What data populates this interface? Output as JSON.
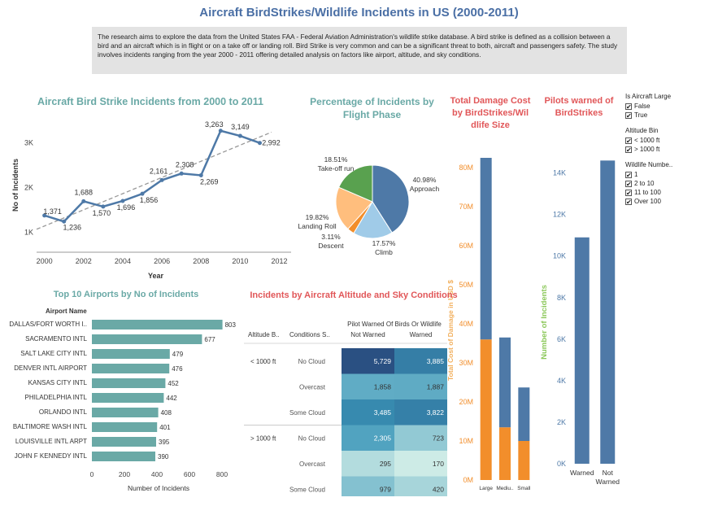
{
  "title": "Aircraft BirdStrikes/Wildlife Incidents in US (2000-2011)",
  "description": "The research aims to explore the data from the United States FAA - Federal Aviation Administration's wildlife strike database. A bird strike is defined as a collision between a bird and an aircraft which is in flight or on a take off or landing roll. Bird Strike is very common and can be a significant threat to both, aircraft and passengers safety. The study involves incidents ranging from the year 2000 - 2011 offering detailed analysis on factors like airport, altitude, and sky conditions.",
  "chart_data": [
    {
      "type": "line",
      "title": "Aircraft Bird Strike Incidents from 2000 to 2011",
      "xlabel": "Year",
      "ylabel": "No of Incidents",
      "x": [
        2000,
        2001,
        2002,
        2003,
        2004,
        2005,
        2006,
        2007,
        2008,
        2009,
        2010,
        2011
      ],
      "values": [
        1371,
        1236,
        1688,
        1570,
        1696,
        1856,
        2161,
        2308,
        2269,
        3263,
        3149,
        2992
      ],
      "data_labels": [
        "1,371",
        "1,236",
        "1,688",
        "1,570",
        "1,696",
        "1,856",
        "2,161",
        "2,308",
        "2,269",
        "3,263",
        "3,149",
        "2,992"
      ],
      "xticks": [
        "2000",
        "2002",
        "2004",
        "2006",
        "2008",
        "2010",
        "2012"
      ],
      "yticks": [
        {
          "v": 1000,
          "label": "1K"
        },
        {
          "v": 2000,
          "label": "2K"
        },
        {
          "v": 3000,
          "label": "3K"
        }
      ],
      "xlim": [
        1999.6,
        2012.6
      ],
      "ylim": [
        550,
        3550
      ],
      "trend_line": true,
      "color": "#4e79a7"
    },
    {
      "type": "pie",
      "title": "Percentage of Incidents by Flight Phase",
      "slices": [
        {
          "name": "Approach",
          "value": 40.98,
          "label": "40.98%",
          "color": "#4e79a7"
        },
        {
          "name": "Climb",
          "value": 17.57,
          "label": "17.57%",
          "color": "#a0cbe8"
        },
        {
          "name": "Descent",
          "value": 3.11,
          "label": "3.11%",
          "color": "#f28e2b"
        },
        {
          "name": "Landing Roll",
          "value": 19.82,
          "label": "19.82%",
          "color": "#ffbe7d"
        },
        {
          "name": "Take-off run",
          "value": 18.51,
          "label": "18.51%",
          "color": "#59a14f"
        }
      ]
    },
    {
      "type": "bar",
      "title": "Total Damage Cost by BirdStrikes/Wildlife Size",
      "title_lines": [
        "Total Damage Cost",
        "by BirdStrikes/Wil",
        "dlife Size"
      ],
      "ylabel": "Total Cost of Damage in USD $",
      "categories": [
        "Large",
        "Medium",
        "Small"
      ],
      "category_labels": [
        "Large",
        "Mediu..",
        "Small"
      ],
      "series": [
        {
          "values": [
            36000000,
            13500000,
            10000000
          ],
          "color": "#f28e2b"
        },
        {
          "values": [
            46500000,
            23000000,
            13700000
          ],
          "color": "#4e79a7"
        }
      ],
      "yticks": [
        {
          "v": 0,
          "label": "0M"
        },
        {
          "v": 10000000,
          "label": "10M"
        },
        {
          "v": 20000000,
          "label": "20M"
        },
        {
          "v": 30000000,
          "label": "30M"
        },
        {
          "v": 40000000,
          "label": "40M"
        },
        {
          "v": 50000000,
          "label": "50M"
        },
        {
          "v": 60000000,
          "label": "60M"
        },
        {
          "v": 70000000,
          "label": "70M"
        },
        {
          "v": 80000000,
          "label": "80M"
        }
      ],
      "ylim": [
        0,
        85000000
      ]
    },
    {
      "type": "bar",
      "title": "Pilots warned of BirdStrikes",
      "title_lines": [
        "Pilots warned of",
        "BirdStrikes"
      ],
      "ylabel": "Number of Incidents",
      "categories": [
        "Warned",
        "Not Warned"
      ],
      "category_labels": [
        [
          "Warned"
        ],
        [
          "Not",
          "Warned"
        ]
      ],
      "values": [
        10900,
        14600
      ],
      "color": "#4e79a7",
      "yticks": [
        {
          "v": 0,
          "label": "0K"
        },
        {
          "v": 2000,
          "label": "2K"
        },
        {
          "v": 4000,
          "label": "4K"
        },
        {
          "v": 6000,
          "label": "6K"
        },
        {
          "v": 8000,
          "label": "8K"
        },
        {
          "v": 10000,
          "label": "10K"
        },
        {
          "v": 12000,
          "label": "12K"
        },
        {
          "v": 14000,
          "label": "14K"
        }
      ],
      "ylim": [
        0,
        15200
      ]
    },
    {
      "type": "bar",
      "orientation": "horizontal",
      "title": "Top 10 Airports by No of Incidents",
      "category_header": "Airport Name",
      "xlabel": "Number of Incidents",
      "categories": [
        "DALLAS/FORT WORTH I..",
        "SACRAMENTO INTL",
        "SALT LAKE CITY INTL",
        "DENVER INTL AIRPORT",
        "KANSAS CITY INTL",
        "PHILADELPHIA INTL",
        "ORLANDO INTL",
        "BALTIMORE WASH INTL",
        "LOUISVILLE INTL ARPT",
        "JOHN F KENNEDY INTL"
      ],
      "values": [
        803,
        677,
        479,
        476,
        452,
        442,
        408,
        401,
        395,
        390
      ],
      "xticks": [
        0,
        200,
        400,
        600,
        800
      ],
      "xlim": [
        0,
        900
      ],
      "color": "#6aa9a6"
    },
    {
      "type": "heatmap",
      "title": "Incidents by Aircraft Altitude and Sky Conditions",
      "column_group_header": "Pilot Warned Of Birds Or Wildlife",
      "row_headers": [
        "Altitude B..",
        "Conditions S.."
      ],
      "columns": [
        "Not Warned",
        "Warned"
      ],
      "rows": [
        {
          "altitude": "< 1000 ft",
          "condition": "No Cloud",
          "values": [
            5729,
            3885
          ],
          "labels": [
            "5,729",
            "3,885"
          ]
        },
        {
          "altitude": "",
          "condition": "Overcast",
          "values": [
            1858,
            1887
          ],
          "labels": [
            "1,858",
            "1,887"
          ]
        },
        {
          "altitude": "",
          "condition": "Some Cloud",
          "values": [
            3485,
            3822
          ],
          "labels": [
            "3,485",
            "3,822"
          ]
        },
        {
          "altitude": "> 1000 ft",
          "condition": "No Cloud",
          "values": [
            2305,
            723
          ],
          "labels": [
            "2,305",
            "723"
          ]
        },
        {
          "altitude": "",
          "condition": "Overcast",
          "values": [
            295,
            170
          ],
          "labels": [
            "295",
            "170"
          ]
        },
        {
          "altitude": "",
          "condition": "Some Cloud",
          "values": [
            979,
            420
          ],
          "labels": [
            "979",
            "420"
          ]
        }
      ]
    }
  ],
  "filters": [
    {
      "title": "Is Aircraft Large",
      "items": [
        "False",
        "True"
      ]
    },
    {
      "title": "Altitude Bin",
      "items": [
        "< 1000 ft",
        "> 1000 ft"
      ]
    },
    {
      "title": "Wildlife Numbe..",
      "items": [
        "1",
        "2 to 10",
        "11 to 100",
        "Over 100"
      ]
    }
  ],
  "check_mark": "✔"
}
